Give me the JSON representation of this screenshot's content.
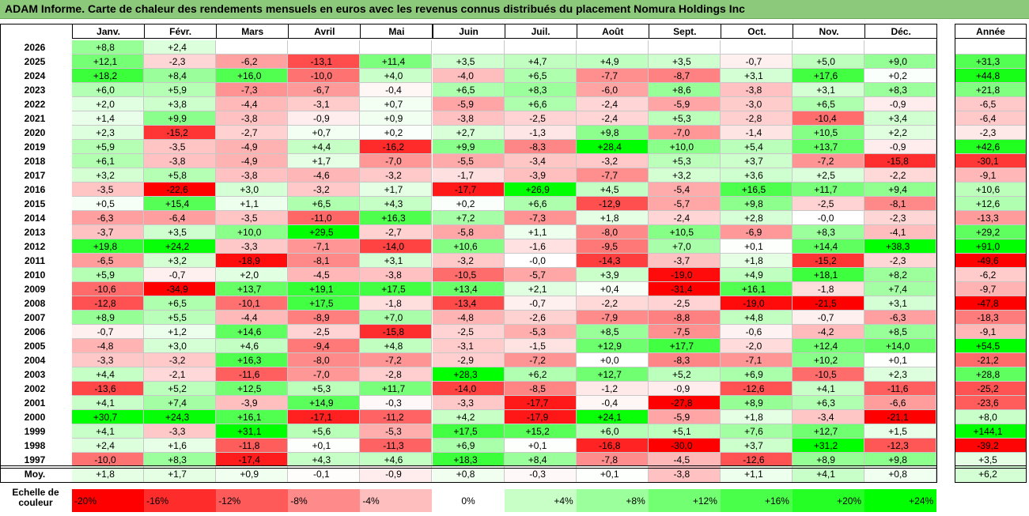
{
  "title": "ADAM Informe. Carte de chaleur des rendements mensuels en euros avec les revenus connus distribués du placement Nomura Holdings Inc",
  "chart_data": {
    "type": "heatmap",
    "title": "ADAM Informe. Carte de chaleur des rendements mensuels en euros avec les revenus connus distribués du placement Nomura Holdings Inc",
    "columns": [
      "Janv.",
      "Févr.",
      "Mars",
      "Avril",
      "Mai",
      "Juin",
      "Juil.",
      "Août",
      "Sept.",
      "Oct.",
      "Nov.",
      "Déc."
    ],
    "year_column": "Année",
    "rows": [
      {
        "year": "2026",
        "values": [
          "+8,8",
          "+2,4",
          "",
          "",
          "",
          "",
          "",
          "",
          "",
          "",
          "",
          ""
        ],
        "annual": ""
      },
      {
        "year": "2025",
        "values": [
          "+12,1",
          "-2,3",
          "-6,2",
          "-13,1",
          "+11,4",
          "+3,5",
          "+4,7",
          "+4,9",
          "+3,5",
          "-0,7",
          "+5,0",
          "+9,0"
        ],
        "annual": "+31,3"
      },
      {
        "year": "2024",
        "values": [
          "+18,2",
          "+8,4",
          "+16,0",
          "-10,0",
          "+4,0",
          "-4,0",
          "+6,5",
          "-7,7",
          "-8,7",
          "+3,1",
          "+17,6",
          "+0,2"
        ],
        "annual": "+44,8"
      },
      {
        "year": "2023",
        "values": [
          "+6,0",
          "+5,9",
          "-7,3",
          "-6,7",
          "-0,4",
          "+6,5",
          "+8,3",
          "-6,0",
          "+8,6",
          "-3,8",
          "+3,1",
          "+8,3"
        ],
        "annual": "+21,8"
      },
      {
        "year": "2022",
        "values": [
          "+2,0",
          "+3,8",
          "-4,4",
          "-3,1",
          "+0,7",
          "-5,9",
          "+6,6",
          "-2,4",
          "-5,9",
          "-3,0",
          "+6,5",
          "-0,9"
        ],
        "annual": "-6,5"
      },
      {
        "year": "2021",
        "values": [
          "+1,4",
          "+9,9",
          "-3,8",
          "-0,9",
          "+0,9",
          "-3,8",
          "-2,5",
          "-2,4",
          "+5,3",
          "-2,8",
          "-10,4",
          "+3,4"
        ],
        "annual": "-6,4"
      },
      {
        "year": "2020",
        "values": [
          "+2,3",
          "-15,2",
          "-2,7",
          "+0,7",
          "+0,2",
          "+2,7",
          "-1,3",
          "+9,8",
          "-7,0",
          "-1,4",
          "+10,5",
          "+2,2"
        ],
        "annual": "-2,3"
      },
      {
        "year": "2019",
        "values": [
          "+5,9",
          "-3,5",
          "-4,9",
          "+4,4",
          "-16,2",
          "+9,9",
          "-8,3",
          "+28,4",
          "+10,0",
          "+5,4",
          "+13,7",
          "-0,9"
        ],
        "annual": "+42,6"
      },
      {
        "year": "2018",
        "values": [
          "+6,1",
          "-3,8",
          "-4,9",
          "+1,7",
          "-7,0",
          "-5,5",
          "-3,4",
          "-3,2",
          "+5,3",
          "+3,7",
          "-7,2",
          "-15,8"
        ],
        "annual": "-30,1"
      },
      {
        "year": "2017",
        "values": [
          "+3,2",
          "+5,8",
          "-3,8",
          "-4,6",
          "-3,2",
          "-1,7",
          "-3,9",
          "-7,7",
          "+3,2",
          "+3,6",
          "+2,5",
          "-2,2"
        ],
        "annual": "-9,1"
      },
      {
        "year": "2016",
        "values": [
          "-3,5",
          "-22,6",
          "+3,0",
          "-3,2",
          "+1,7",
          "-17,7",
          "+26,9",
          "+4,5",
          "-5,4",
          "+16,5",
          "+11,7",
          "+9,4"
        ],
        "annual": "+10,6"
      },
      {
        "year": "2015",
        "values": [
          "+0,5",
          "+15,4",
          "+1,1",
          "+6,5",
          "+4,3",
          "+0,2",
          "+6,6",
          "-12,9",
          "-5,7",
          "+9,8",
          "-2,5",
          "-8,1"
        ],
        "annual": "+12,6"
      },
      {
        "year": "2014",
        "values": [
          "-6,3",
          "-6,4",
          "-3,5",
          "-11,0",
          "+16,3",
          "+7,2",
          "-7,3",
          "+1,8",
          "-2,4",
          "+2,8",
          "-0,0",
          "-2,3"
        ],
        "annual": "-13,3"
      },
      {
        "year": "2013",
        "values": [
          "-3,7",
          "+3,5",
          "+10,0",
          "+29,5",
          "-2,7",
          "-5,8",
          "+1,1",
          "-8,0",
          "+10,5",
          "-6,9",
          "+8,3",
          "-4,1"
        ],
        "annual": "+29,2"
      },
      {
        "year": "2012",
        "values": [
          "+19,8",
          "+24,2",
          "-3,3",
          "-7,1",
          "-14,0",
          "+10,6",
          "-1,6",
          "-9,5",
          "+7,0",
          "+0,1",
          "+14,4",
          "+38,3"
        ],
        "annual": "+91,0"
      },
      {
        "year": "2011",
        "values": [
          "-6,5",
          "+3,2",
          "-18,9",
          "-8,1",
          "+3,1",
          "-3,2",
          "-0,0",
          "-14,3",
          "-3,7",
          "+1,8",
          "-15,2",
          "-2,3"
        ],
        "annual": "-49,6"
      },
      {
        "year": "2010",
        "values": [
          "+5,9",
          "-0,7",
          "+2,0",
          "-4,5",
          "-3,8",
          "-10,5",
          "-5,7",
          "+3,9",
          "-19,0",
          "+4,9",
          "+18,1",
          "+8,2"
        ],
        "annual": "-6,2"
      },
      {
        "year": "2009",
        "values": [
          "-10,6",
          "-34,9",
          "+13,7",
          "+19,1",
          "+17,5",
          "+13,4",
          "+2,1",
          "+0,4",
          "-31,4",
          "+16,1",
          "-1,8",
          "+7,4"
        ],
        "annual": "-9,7"
      },
      {
        "year": "2008",
        "values": [
          "-12,8",
          "+6,5",
          "-10,1",
          "+17,5",
          "-1,8",
          "-13,4",
          "-0,7",
          "-2,2",
          "-2,5",
          "-19,0",
          "-21,5",
          "+3,1"
        ],
        "annual": "-47,8"
      },
      {
        "year": "2007",
        "values": [
          "+8,9",
          "+5,5",
          "-4,4",
          "-8,9",
          "+7,0",
          "-4,8",
          "-2,6",
          "-7,9",
          "-8,8",
          "+4,8",
          "-0,7",
          "-6,3"
        ],
        "annual": "-18,3"
      },
      {
        "year": "2006",
        "values": [
          "-0,7",
          "+1,2",
          "+14,6",
          "-2,5",
          "-15,8",
          "-2,5",
          "-5,3",
          "+8,5",
          "-7,5",
          "-0,6",
          "-4,2",
          "+8,5"
        ],
        "annual": "-9,1"
      },
      {
        "year": "2005",
        "values": [
          "-4,8",
          "+3,0",
          "+4,6",
          "-9,4",
          "+4,8",
          "-3,1",
          "-1,5",
          "+12,9",
          "+17,7",
          "-2,0",
          "+12,4",
          "+14,0"
        ],
        "annual": "+54,5"
      },
      {
        "year": "2004",
        "values": [
          "-3,3",
          "-3,2",
          "+16,3",
          "-8,0",
          "-7,2",
          "-2,9",
          "-7,2",
          "+0,0",
          "-8,3",
          "-7,1",
          "+10,2",
          "+0,1"
        ],
        "annual": "-21,2"
      },
      {
        "year": "2003",
        "values": [
          "+4,4",
          "-2,1",
          "-11,6",
          "-7,0",
          "-2,8",
          "+28,3",
          "+6,2",
          "+12,7",
          "+5,2",
          "+6,9",
          "-10,5",
          "+2,3"
        ],
        "annual": "+28,8"
      },
      {
        "year": "2002",
        "values": [
          "-13,6",
          "+5,2",
          "+12,5",
          "+5,3",
          "+11,7",
          "-14,0",
          "-8,5",
          "-1,2",
          "-0,9",
          "-12,6",
          "+4,1",
          "-11,6"
        ],
        "annual": "-25,2"
      },
      {
        "year": "2001",
        "values": [
          "+4,1",
          "+7,4",
          "-3,9",
          "+14,9",
          "-0,3",
          "-3,3",
          "-17,7",
          "-0,4",
          "-27,8",
          "+8,9",
          "+6,3",
          "-6,6"
        ],
        "annual": "-23,6"
      },
      {
        "year": "2000",
        "values": [
          "+30,7",
          "+24,3",
          "+16,1",
          "-17,1",
          "-11,2",
          "+4,2",
          "-17,9",
          "+24,1",
          "-5,9",
          "+1,8",
          "-3,4",
          "-21,1"
        ],
        "annual": "+8,0"
      },
      {
        "year": "1999",
        "values": [
          "+4,1",
          "-3,3",
          "+31,1",
          "+5,6",
          "-5,3",
          "+17,5",
          "+15,2",
          "+6,0",
          "+5,1",
          "+7,6",
          "+12,7",
          "+1,5"
        ],
        "annual": "+144,1"
      },
      {
        "year": "1998",
        "values": [
          "+2,4",
          "+1,6",
          "-11,8",
          "+0,1",
          "-11,3",
          "+6,9",
          "+0,1",
          "-16,8",
          "-30,0",
          "+3,7",
          "+31,2",
          "-12,3"
        ],
        "annual": "-39,2"
      },
      {
        "year": "1997",
        "values": [
          "-10,0",
          "+8,3",
          "-17,4",
          "+4,3",
          "+4,6",
          "+18,3",
          "+8,4",
          "-7,8",
          "-4,5",
          "-12,6",
          "+8,9",
          "+9,8"
        ],
        "annual": "+3,5"
      }
    ],
    "average": {
      "label": "Moy.",
      "values": [
        "+1,8",
        "+1,7",
        "+0,9",
        "-0,1",
        "-0,9",
        "+0,8",
        "-0,3",
        "+0,1",
        "-3,8",
        "+1,1",
        "+4,1",
        "+0,8"
      ],
      "annual": "+6,2"
    },
    "scale": {
      "label": "Echelle de couleur",
      "steps": [
        {
          "label": "-20%",
          "value": -20
        },
        {
          "label": "-16%",
          "value": -16
        },
        {
          "label": "-12%",
          "value": -12
        },
        {
          "label": "-8%",
          "value": -8
        },
        {
          "label": "-4%",
          "value": -4
        },
        {
          "label": "0%",
          "value": 0
        },
        {
          "label": "+4%",
          "value": 4
        },
        {
          "label": "+8%",
          "value": 8
        },
        {
          "label": "+12%",
          "value": 12
        },
        {
          "label": "+16%",
          "value": 16
        },
        {
          "label": "+20%",
          "value": 20
        },
        {
          "label": "+24%",
          "value": 24
        }
      ]
    },
    "colors": {
      "negative": "#ff0000",
      "neutral": "#ffffff",
      "positive": "#00ff00",
      "title_bar": "#8cc97a"
    }
  }
}
